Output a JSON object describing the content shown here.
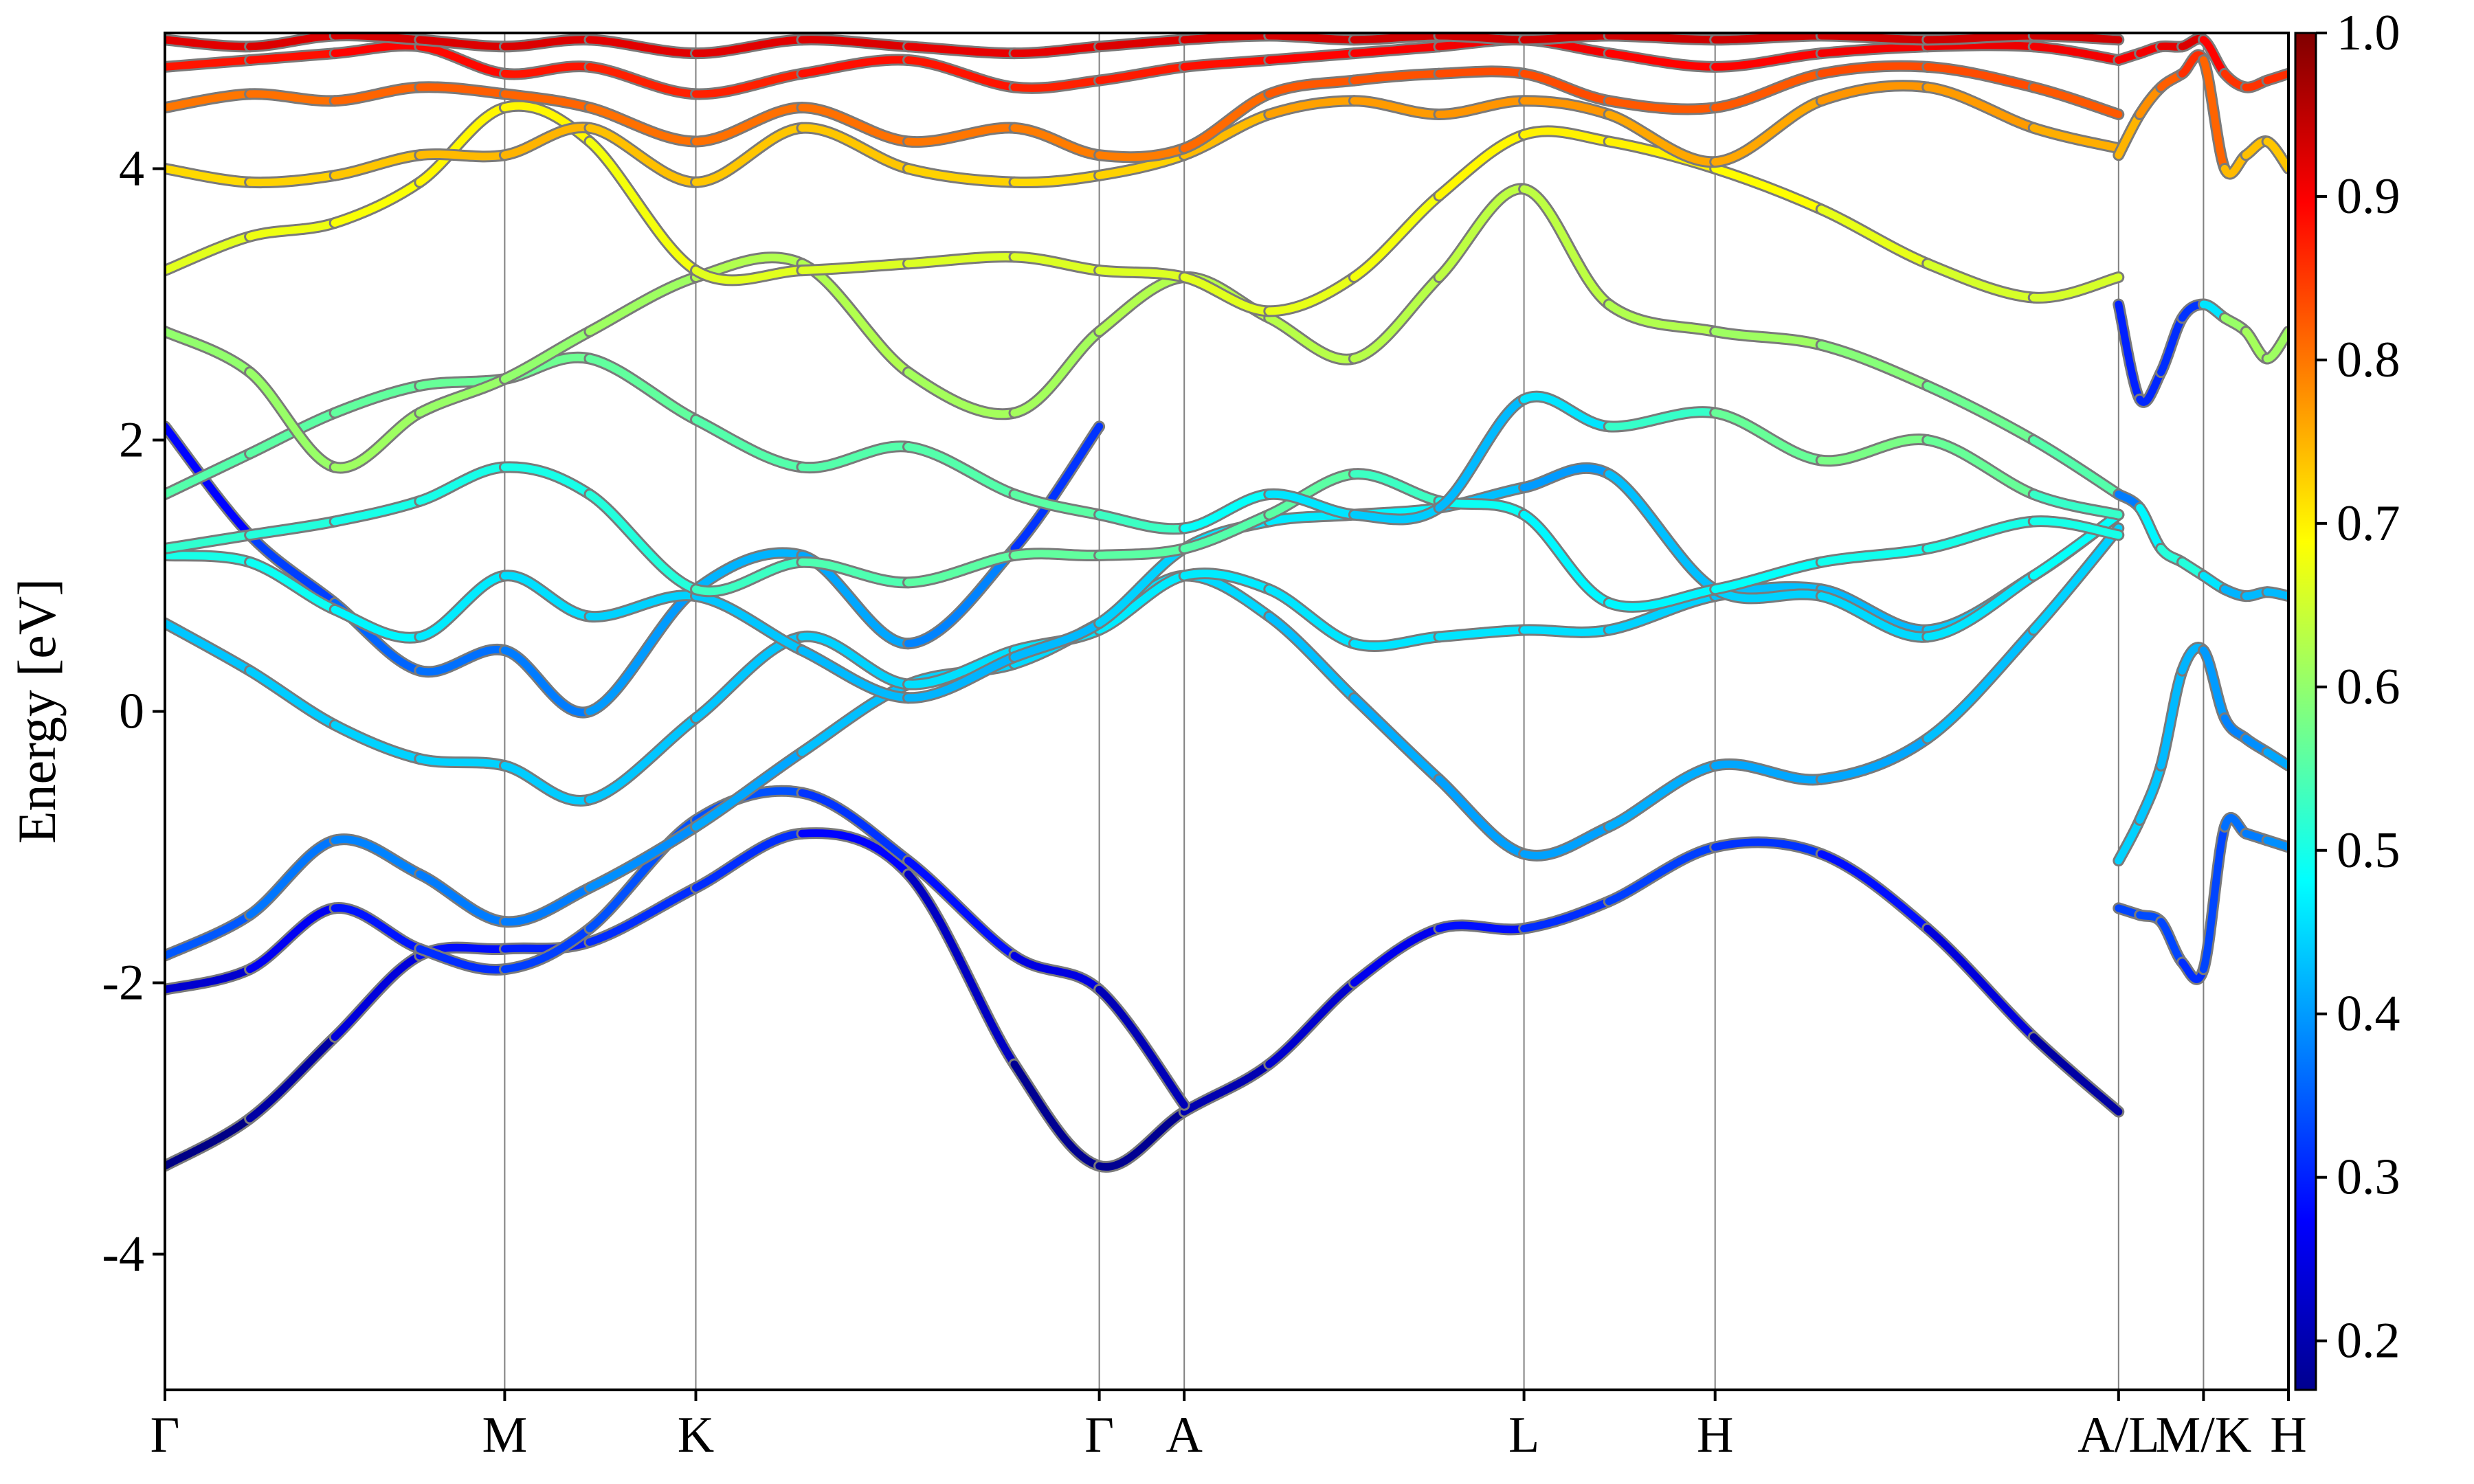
{
  "chart_data": {
    "type": "line",
    "title": "",
    "xlabel": "",
    "ylabel": "Energy [eV]",
    "ylim": [
      -5,
      5
    ],
    "yticks": [
      -4,
      -2,
      0,
      2,
      4
    ],
    "ytick_labels": [
      "-4",
      "-2",
      "0",
      "2",
      "4"
    ],
    "grid": false,
    "kpath_labels": [
      "Γ",
      "M",
      "K",
      "Γ",
      "A",
      "L",
      "H",
      "A/L",
      "M/K",
      "H"
    ],
    "kpath_positions": [
      0,
      0.16,
      0.25,
      0.44,
      0.48,
      0.64,
      0.73,
      0.92,
      0.96,
      1.0
    ],
    "colorbar": {
      "colormap": "jet",
      "range": [
        0.17,
        1.0
      ],
      "tick_values": [
        0.2,
        0.3,
        0.4,
        0.5,
        0.6,
        0.7,
        0.8,
        0.9,
        1.0
      ],
      "tick_labels": [
        "0.2",
        "0.3",
        "0.4",
        "0.5",
        "0.6",
        "0.7",
        "0.8",
        "0.9",
        "1.0"
      ]
    },
    "series": [
      {
        "x": [
          0,
          0.04,
          0.08,
          0.12,
          0.16,
          0.2,
          0.25,
          0.3,
          0.35,
          0.4,
          0.44,
          0.48,
          0.52,
          0.56,
          0.6,
          0.64,
          0.68,
          0.73,
          0.78,
          0.83,
          0.88,
          0.92
        ],
        "y": [
          -3.35,
          -3.0,
          -2.4,
          -1.8,
          -1.75,
          -1.7,
          -1.3,
          -0.9,
          -1.2,
          -2.6,
          -3.35,
          -2.95,
          -2.6,
          -2.0,
          -1.6,
          -1.6,
          -1.4,
          -1.0,
          -1.05,
          -1.6,
          -2.4,
          -2.95
        ],
        "c": [
          0.17,
          0.18,
          0.22,
          0.27,
          0.3,
          0.3,
          0.32,
          0.3,
          0.25,
          0.2,
          0.17,
          0.2,
          0.22,
          0.25,
          0.27,
          0.3,
          0.32,
          0.33,
          0.3,
          0.27,
          0.22,
          0.18
        ]
      },
      {
        "x": [
          0,
          0.04,
          0.08,
          0.12,
          0.16,
          0.2,
          0.25,
          0.3,
          0.35,
          0.4,
          0.44,
          0.48
        ],
        "y": [
          -2.05,
          -1.9,
          -1.45,
          -1.75,
          -1.9,
          -1.6,
          -0.8,
          -0.6,
          -1.1,
          -1.8,
          -2.05,
          -2.9
        ],
        "c": [
          0.22,
          0.25,
          0.28,
          0.3,
          0.32,
          0.33,
          0.35,
          0.33,
          0.3,
          0.27,
          0.23,
          0.2
        ]
      },
      {
        "x": [
          0,
          0.04,
          0.08,
          0.12,
          0.16,
          0.2,
          0.25,
          0.3,
          0.35,
          0.4,
          0.44,
          0.48,
          0.52,
          0.56,
          0.6,
          0.64,
          0.68,
          0.73,
          0.78,
          0.83,
          0.88,
          0.92
        ],
        "y": [
          -1.8,
          -1.5,
          -0.95,
          -1.2,
          -1.55,
          -1.3,
          -0.85,
          -0.3,
          0.2,
          0.35,
          0.65,
          1.0,
          0.7,
          0.1,
          -0.5,
          -1.05,
          -0.85,
          -0.4,
          -0.5,
          -0.2,
          0.6,
          1.35
        ],
        "c": [
          0.33,
          0.36,
          0.38,
          0.38,
          0.37,
          0.38,
          0.4,
          0.42,
          0.44,
          0.45,
          0.45,
          0.46,
          0.44,
          0.42,
          0.41,
          0.4,
          0.41,
          0.42,
          0.4,
          0.42,
          0.44,
          0.45
        ]
      },
      {
        "x": [
          0,
          0.04,
          0.08,
          0.12,
          0.16,
          0.2,
          0.25,
          0.3,
          0.35,
          0.4,
          0.44,
          0.48,
          0.52,
          0.56,
          0.6,
          0.64,
          0.68,
          0.73,
          0.78,
          0.83,
          0.88,
          0.92
        ],
        "y": [
          0.65,
          0.3,
          -0.1,
          -0.35,
          -0.4,
          -0.65,
          -0.05,
          0.55,
          0.2,
          0.45,
          0.6,
          1.0,
          0.9,
          0.5,
          0.55,
          0.6,
          0.6,
          0.85,
          0.9,
          0.6,
          1.0,
          1.45
        ],
        "c": [
          0.43,
          0.44,
          0.44,
          0.45,
          0.44,
          0.44,
          0.43,
          0.44,
          0.45,
          0.46,
          0.46,
          0.47,
          0.46,
          0.46,
          0.46,
          0.46,
          0.45,
          0.44,
          0.42,
          0.43,
          0.45,
          0.47
        ]
      },
      {
        "x": [
          0,
          0.04,
          0.08,
          0.12,
          0.16,
          0.2,
          0.25,
          0.3,
          0.35,
          0.4,
          0.44
        ],
        "y": [
          2.1,
          1.3,
          0.8,
          0.3,
          0.45,
          0.0,
          0.9,
          1.15,
          0.5,
          1.2,
          2.1
        ],
        "c": [
          0.25,
          0.3,
          0.35,
          0.36,
          0.37,
          0.38,
          0.42,
          0.42,
          0.4,
          0.36,
          0.27
        ]
      },
      {
        "x": [
          0,
          0.04,
          0.08,
          0.12,
          0.16,
          0.2,
          0.25,
          0.3,
          0.35,
          0.4,
          0.44,
          0.48,
          0.52,
          0.56,
          0.6,
          0.64,
          0.68,
          0.73,
          0.78,
          0.83,
          0.88,
          0.92
        ],
        "y": [
          1.15,
          1.1,
          0.75,
          0.55,
          1.0,
          0.7,
          0.85,
          0.45,
          0.1,
          0.4,
          0.65,
          1.2,
          1.4,
          1.45,
          1.5,
          1.65,
          1.75,
          0.9,
          0.85,
          0.55,
          1.0,
          1.45
        ],
        "c": [
          0.5,
          0.5,
          0.48,
          0.47,
          0.46,
          0.45,
          0.44,
          0.43,
          0.42,
          0.42,
          0.43,
          0.46,
          0.46,
          0.47,
          0.48,
          0.38,
          0.42,
          0.44,
          0.45,
          0.45,
          0.47,
          0.5
        ]
      },
      {
        "x": [
          0,
          0.04,
          0.08,
          0.12,
          0.16,
          0.2,
          0.25,
          0.3,
          0.35,
          0.4,
          0.44,
          0.48,
          0.52,
          0.56,
          0.6,
          0.64,
          0.68,
          0.73,
          0.78,
          0.83,
          0.88,
          0.92
        ],
        "y": [
          1.2,
          1.3,
          1.4,
          1.55,
          1.8,
          1.6,
          0.9,
          1.1,
          0.95,
          1.15,
          1.15,
          1.2,
          1.45,
          1.75,
          1.55,
          1.45,
          0.8,
          0.9,
          1.1,
          1.2,
          1.4,
          1.3
        ],
        "c": [
          0.52,
          0.52,
          0.5,
          0.5,
          0.5,
          0.5,
          0.52,
          0.54,
          0.55,
          0.56,
          0.56,
          0.55,
          0.55,
          0.56,
          0.5,
          0.48,
          0.47,
          0.48,
          0.49,
          0.5,
          0.5,
          0.5
        ]
      },
      {
        "x": [
          0,
          0.04,
          0.08,
          0.12,
          0.16,
          0.2,
          0.25,
          0.3,
          0.35,
          0.4,
          0.44,
          0.48,
          0.52,
          0.56,
          0.6,
          0.64,
          0.68,
          0.73,
          0.78,
          0.83,
          0.88,
          0.92
        ],
        "y": [
          1.6,
          1.9,
          2.2,
          2.4,
          2.45,
          2.6,
          2.15,
          1.8,
          1.95,
          1.6,
          1.45,
          1.35,
          1.6,
          1.45,
          1.5,
          2.3,
          2.1,
          2.2,
          1.85,
          2.0,
          1.6,
          1.45
        ],
        "c": [
          0.55,
          0.55,
          0.56,
          0.56,
          0.57,
          0.57,
          0.55,
          0.55,
          0.55,
          0.55,
          0.56,
          0.5,
          0.47,
          0.45,
          0.43,
          0.42,
          0.5,
          0.55,
          0.58,
          0.58,
          0.55,
          0.5
        ]
      },
      {
        "x": [
          0,
          0.04,
          0.08,
          0.12,
          0.16,
          0.2,
          0.25,
          0.3,
          0.35,
          0.4,
          0.44,
          0.48,
          0.52,
          0.56,
          0.6,
          0.64,
          0.68,
          0.73,
          0.78,
          0.83,
          0.88,
          0.92
        ],
        "y": [
          2.8,
          2.5,
          1.8,
          2.2,
          2.45,
          2.8,
          3.2,
          3.3,
          2.5,
          2.2,
          2.8,
          3.2,
          2.9,
          2.6,
          3.2,
          3.85,
          3.0,
          2.8,
          2.7,
          2.4,
          2.0,
          1.6
        ],
        "c": [
          0.6,
          0.6,
          0.61,
          0.61,
          0.6,
          0.6,
          0.62,
          0.63,
          0.62,
          0.61,
          0.62,
          0.63,
          0.63,
          0.63,
          0.63,
          0.64,
          0.63,
          0.62,
          0.6,
          0.58,
          0.56,
          0.54
        ]
      },
      {
        "x": [
          0,
          0.04,
          0.08,
          0.12,
          0.16,
          0.2,
          0.25,
          0.3,
          0.35,
          0.4,
          0.44,
          0.48,
          0.52,
          0.56,
          0.6,
          0.64,
          0.68,
          0.73,
          0.78,
          0.83,
          0.88,
          0.92
        ],
        "y": [
          3.25,
          3.5,
          3.6,
          3.9,
          4.45,
          4.2,
          3.25,
          3.25,
          3.3,
          3.35,
          3.25,
          3.2,
          2.95,
          3.2,
          3.8,
          4.25,
          4.2,
          4.0,
          3.7,
          3.3,
          3.05,
          3.2
        ],
        "c": [
          0.66,
          0.67,
          0.68,
          0.69,
          0.7,
          0.69,
          0.67,
          0.66,
          0.66,
          0.66,
          0.66,
          0.66,
          0.67,
          0.67,
          0.69,
          0.7,
          0.7,
          0.7,
          0.68,
          0.66,
          0.65,
          0.66
        ]
      },
      {
        "x": [
          0,
          0.04,
          0.08,
          0.12,
          0.16,
          0.2,
          0.25,
          0.3,
          0.35,
          0.4,
          0.44,
          0.48,
          0.52,
          0.56,
          0.6,
          0.64,
          0.68,
          0.73,
          0.78,
          0.83,
          0.88,
          0.92
        ],
        "y": [
          4.0,
          3.9,
          3.95,
          4.1,
          4.1,
          4.3,
          3.9,
          4.3,
          4.0,
          3.9,
          3.95,
          4.1,
          4.4,
          4.5,
          4.4,
          4.5,
          4.4,
          4.05,
          4.5,
          4.6,
          4.3,
          4.15
        ],
        "c": [
          0.72,
          0.72,
          0.73,
          0.74,
          0.75,
          0.75,
          0.73,
          0.74,
          0.73,
          0.72,
          0.72,
          0.73,
          0.76,
          0.77,
          0.77,
          0.78,
          0.77,
          0.75,
          0.77,
          0.78,
          0.76,
          0.75
        ]
      },
      {
        "x": [
          0,
          0.04,
          0.08,
          0.12,
          0.16,
          0.2,
          0.25,
          0.3,
          0.35,
          0.4,
          0.44,
          0.48,
          0.52,
          0.56,
          0.6,
          0.64,
          0.68,
          0.73,
          0.78,
          0.83,
          0.88,
          0.92
        ],
        "y": [
          4.45,
          4.55,
          4.5,
          4.6,
          4.55,
          4.45,
          4.2,
          4.45,
          4.2,
          4.3,
          4.1,
          4.15,
          4.55,
          4.65,
          4.7,
          4.7,
          4.5,
          4.45,
          4.7,
          4.75,
          4.6,
          4.4
        ],
        "c": [
          0.8,
          0.8,
          0.81,
          0.82,
          0.82,
          0.81,
          0.8,
          0.81,
          0.8,
          0.8,
          0.79,
          0.8,
          0.82,
          0.83,
          0.83,
          0.84,
          0.83,
          0.82,
          0.83,
          0.84,
          0.83,
          0.82
        ]
      },
      {
        "x": [
          0,
          0.04,
          0.08,
          0.12,
          0.16,
          0.2,
          0.25,
          0.3,
          0.35,
          0.4,
          0.44,
          0.48,
          0.52,
          0.56,
          0.6,
          0.64,
          0.68,
          0.73,
          0.78,
          0.83,
          0.88,
          0.92
        ],
        "y": [
          4.75,
          4.8,
          4.85,
          4.9,
          4.7,
          4.75,
          4.55,
          4.7,
          4.8,
          4.6,
          4.65,
          4.75,
          4.8,
          4.85,
          4.9,
          4.95,
          4.85,
          4.75,
          4.85,
          4.9,
          4.9,
          4.8
        ],
        "c": [
          0.88,
          0.88,
          0.89,
          0.9,
          0.88,
          0.88,
          0.86,
          0.88,
          0.89,
          0.87,
          0.87,
          0.88,
          0.89,
          0.9,
          0.9,
          0.91,
          0.9,
          0.89,
          0.9,
          0.91,
          0.91,
          0.9
        ]
      },
      {
        "x": [
          0,
          0.04,
          0.08,
          0.12,
          0.16,
          0.2,
          0.25,
          0.3,
          0.35,
          0.4,
          0.44,
          0.48,
          0.52,
          0.56,
          0.6,
          0.64,
          0.68,
          0.73,
          0.78,
          0.83,
          0.88,
          0.92
        ],
        "y": [
          4.95,
          4.9,
          4.98,
          4.95,
          4.9,
          4.95,
          4.85,
          4.95,
          4.9,
          4.85,
          4.9,
          4.95,
          4.98,
          4.95,
          4.98,
          4.95,
          4.98,
          4.95,
          4.98,
          4.95,
          4.98,
          4.95
        ],
        "c": [
          0.92,
          0.92,
          0.93,
          0.93,
          0.92,
          0.93,
          0.91,
          0.93,
          0.92,
          0.91,
          0.92,
          0.93,
          0.93,
          0.93,
          0.94,
          0.93,
          0.94,
          0.93,
          0.94,
          0.93,
          0.94,
          0.93
        ]
      },
      {
        "x": [
          0.92,
          0.93,
          0.94,
          0.95,
          0.96,
          0.97,
          0.98,
          0.99,
          1.0
        ],
        "y": [
          3.0,
          2.3,
          2.5,
          2.9,
          3.0,
          2.9,
          2.8,
          2.6,
          2.8
        ],
        "c": [
          0.3,
          0.3,
          0.31,
          0.31,
          0.32,
          0.6,
          0.61,
          0.62,
          0.6
        ]
      },
      {
        "x": [
          0.92,
          0.93,
          0.94,
          0.95,
          0.96,
          0.97,
          0.98,
          0.99,
          1.0
        ],
        "y": [
          1.6,
          1.5,
          1.2,
          1.1,
          1.0,
          0.9,
          0.85,
          0.88,
          0.85
        ],
        "c": [
          0.3,
          0.45,
          0.5,
          0.52,
          0.5,
          0.42,
          0.42,
          0.43,
          0.42
        ]
      },
      {
        "x": [
          0.92,
          0.93,
          0.94,
          0.95,
          0.96,
          0.97,
          0.98,
          0.99,
          1.0
        ],
        "y": [
          -1.1,
          -0.8,
          -0.4,
          0.3,
          0.45,
          -0.05,
          -0.2,
          -0.3,
          -0.4
        ],
        "c": [
          0.45,
          0.44,
          0.43,
          0.42,
          0.42,
          0.38,
          0.38,
          0.4,
          0.42
        ]
      },
      {
        "x": [
          0.92,
          0.93,
          0.94,
          0.95,
          0.96,
          0.97,
          0.98,
          0.99,
          1.0
        ],
        "y": [
          -1.45,
          -1.5,
          -1.55,
          -1.85,
          -1.9,
          -0.85,
          -0.9,
          -0.95,
          -1.0
        ],
        "c": [
          0.33,
          0.33,
          0.34,
          0.32,
          0.3,
          0.36,
          0.37,
          0.38,
          0.4
        ]
      },
      {
        "x": [
          0.92,
          0.93,
          0.94,
          0.95,
          0.96,
          0.97,
          0.98,
          0.99,
          1.0
        ],
        "y": [
          4.1,
          4.4,
          4.6,
          4.7,
          4.8,
          4.0,
          4.1,
          4.2,
          4.0
        ],
        "c": [
          0.74,
          0.76,
          0.8,
          0.84,
          0.88,
          0.75,
          0.74,
          0.74,
          0.73
        ]
      },
      {
        "x": [
          0.92,
          0.93,
          0.94,
          0.95,
          0.96,
          0.97,
          0.98,
          0.99,
          1.0
        ],
        "y": [
          4.8,
          4.85,
          4.9,
          4.9,
          4.95,
          4.7,
          4.6,
          4.65,
          4.7
        ],
        "c": [
          0.9,
          0.9,
          0.91,
          0.92,
          0.93,
          0.86,
          0.85,
          0.86,
          0.86
        ]
      }
    ]
  }
}
